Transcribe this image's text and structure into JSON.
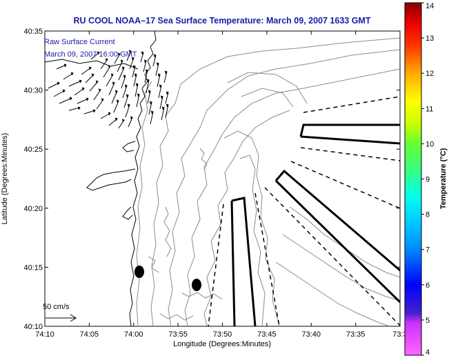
{
  "title": "RU COOL  NOAA–17  Sea Surface Temperature:  March 09, 2007 1633 GMT",
  "legend": {
    "line1": "Raw Surface Current",
    "line2": "March 09, 2007 16:00 GMT",
    "scale_label": "50 cm/s"
  },
  "axes": {
    "xlabel": "Longitude (Degrees:Minutes)",
    "ylabel": "Latitude (Degrees:Minutes)",
    "x_ticks": [
      "74:10",
      "74:05",
      "74:00",
      "73:55",
      "73:50",
      "73:45",
      "73:40",
      "73:35",
      "73:3"
    ],
    "y_ticks": [
      "40:35",
      "40:30",
      "40:25",
      "40:20",
      "40:15",
      "40:10"
    ]
  },
  "colorbar": {
    "title": "Temperature (°C)",
    "labels": [
      "14",
      "13",
      "12",
      "11",
      "10",
      "9",
      "8",
      "7",
      "6",
      "5",
      "4"
    ],
    "range": [
      4,
      14
    ]
  },
  "colors": {
    "title": "#1a1aa8",
    "legend_text": "#1a1aa8",
    "contour": "#8a8a8a",
    "coastline": "#000000"
  }
}
